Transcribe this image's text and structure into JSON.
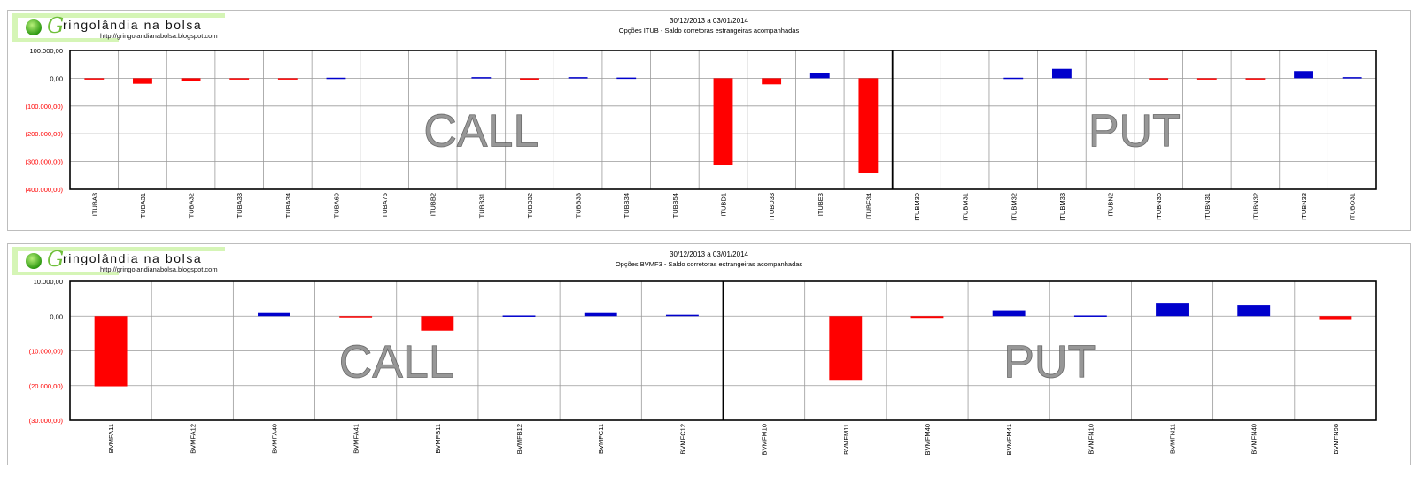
{
  "logo": {
    "initial": "G",
    "title": "ringolândia na bolsa",
    "url": "http://gringolandianabolsa.blogspot.com"
  },
  "colors": {
    "negative": "#ff0000",
    "positive": "#0000cc",
    "neg_tick_label": "#ff0000"
  },
  "chart_data": [
    {
      "type": "bar",
      "date_range": "30/12/2013  a  03/01/2014",
      "subtitle": "Opções  ITUB - Saldo corretoras estrangeiras acompanhadas",
      "ylim": [
        -400000,
        100000
      ],
      "yticks": [
        100000,
        0,
        -100000,
        -200000,
        -300000,
        -400000
      ],
      "ytick_labels": [
        "100.000,00",
        "0,00",
        "(100.000,00)",
        "(200.000,00)",
        "(300.000,00)",
        "(400.000,00)"
      ],
      "grid": true,
      "sections": [
        {
          "label": "CALL",
          "count": 17
        },
        {
          "label": "PUT",
          "count": 10
        }
      ],
      "categories": [
        "ITUBA3",
        "ITUBA31",
        "ITUBA32",
        "ITUBA33",
        "ITUBA34",
        "ITUBA60",
        "ITUBA75",
        "ITUBB2",
        "ITUBB31",
        "ITUBB32",
        "ITUBB33",
        "ITUBB34",
        "ITUBB54",
        "ITUBD1",
        "ITUBD33",
        "ITUBE3",
        "ITUBF34",
        "ITUBM30",
        "ITUBM31",
        "ITUBM32",
        "ITUBM33",
        "ITUBN2",
        "ITUBN30",
        "ITUBN31",
        "ITUBN32",
        "ITUBN33",
        "ITUBO31"
      ],
      "values": [
        -2000,
        -20000,
        -10000,
        -3000,
        -3000,
        2000,
        0,
        0,
        4000,
        -5000,
        4000,
        2500,
        0,
        -312000,
        -22000,
        18000,
        -340000,
        0,
        0,
        2000,
        34000,
        0,
        -3000,
        -3000,
        -3000,
        26000,
        4000
      ]
    },
    {
      "type": "bar",
      "date_range": "30/12/2013  a  03/01/2014",
      "subtitle": "Opções  BVMF3 - Saldo corretoras estrangeiras acompanhadas",
      "ylim": [
        -30000,
        10000
      ],
      "yticks": [
        10000,
        0,
        -10000,
        -20000,
        -30000
      ],
      "ytick_labels": [
        "10.000,00",
        "0,00",
        "(10.000,00)",
        "(20.000,00)",
        "(30.000,00)"
      ],
      "grid": true,
      "sections": [
        {
          "label": "CALL",
          "count": 8
        },
        {
          "label": "PUT",
          "count": 8
        }
      ],
      "categories": [
        "BVMFA11",
        "BVMFA12",
        "BVMFA40",
        "BVMFA41",
        "BVMFB11",
        "BVMFB12",
        "BVMFC11",
        "BVMFC12",
        "BVMFM10",
        "BVMFM11",
        "BVMFM40",
        "BVMFM41",
        "BVMFN10",
        "BVMFN11",
        "BVMFN40",
        "BVMFN98"
      ],
      "values": [
        -20200,
        0,
        900,
        -300,
        -4200,
        200,
        900,
        400,
        0,
        -18600,
        -500,
        1700,
        200,
        3600,
        3100,
        -1100
      ]
    }
  ]
}
